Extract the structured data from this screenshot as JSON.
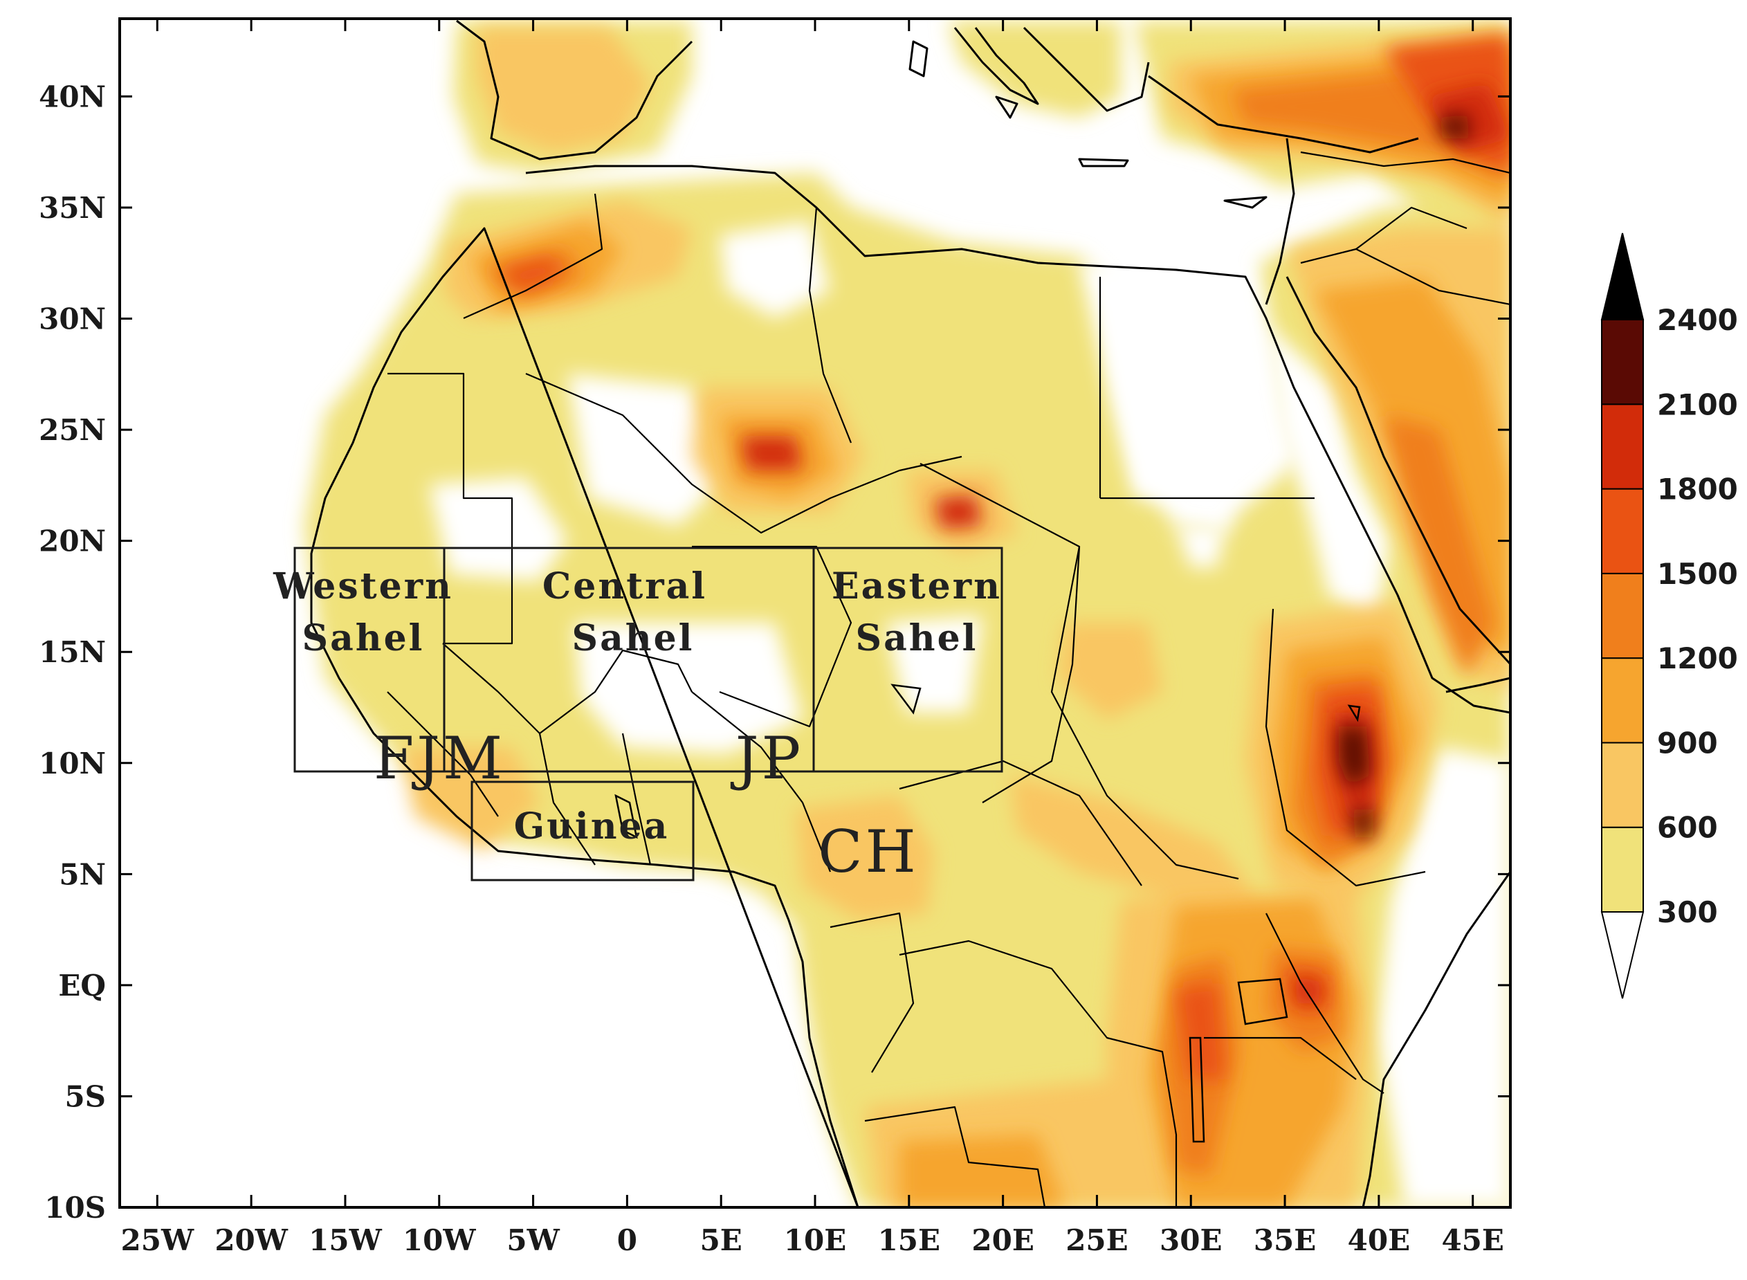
{
  "map": {
    "lon_range": [
      -27,
      47
    ],
    "lat_range": [
      -10,
      43.5
    ],
    "lon_ticks": [
      {
        "value": -25,
        "label": "25W"
      },
      {
        "value": -20,
        "label": "20W"
      },
      {
        "value": -15,
        "label": "15W"
      },
      {
        "value": -10,
        "label": "10W"
      },
      {
        "value": -5,
        "label": "5W"
      },
      {
        "value": 0,
        "label": "0"
      },
      {
        "value": 5,
        "label": "5E"
      },
      {
        "value": 10,
        "label": "10E"
      },
      {
        "value": 15,
        "label": "15E"
      },
      {
        "value": 20,
        "label": "20E"
      },
      {
        "value": 25,
        "label": "25E"
      },
      {
        "value": 30,
        "label": "30E"
      },
      {
        "value": 35,
        "label": "35E"
      },
      {
        "value": 40,
        "label": "40E"
      },
      {
        "value": 45,
        "label": "45E"
      }
    ],
    "lat_ticks": [
      {
        "value": 40,
        "label": "40N"
      },
      {
        "value": 35,
        "label": "35N"
      },
      {
        "value": 30,
        "label": "30N"
      },
      {
        "value": 25,
        "label": "25N"
      },
      {
        "value": 20,
        "label": "20N"
      },
      {
        "value": 15,
        "label": "15N"
      },
      {
        "value": 10,
        "label": "10N"
      },
      {
        "value": 5,
        "label": "5N"
      },
      {
        "value": 0,
        "label": "EQ"
      },
      {
        "value": -5,
        "label": "5S"
      },
      {
        "value": -10,
        "label": "10S"
      }
    ],
    "regions": [
      {
        "name": "western-sahel",
        "label_line1": "Western",
        "label_line2": "Sahel",
        "lon": [
          -18,
          -10
        ],
        "lat": [
          10,
          20
        ]
      },
      {
        "name": "central-sahel",
        "label_line1": "Central",
        "label_line2": "Sahel",
        "lon": [
          -10,
          10
        ],
        "lat": [
          10,
          20
        ]
      },
      {
        "name": "eastern-sahel",
        "label_line1": "Eastern",
        "label_line2": "Sahel",
        "lon": [
          10,
          20
        ],
        "lat": [
          10,
          20
        ]
      },
      {
        "name": "guinea",
        "label_line1": "Guinea",
        "label_line2": "",
        "lon": [
          -8.5,
          3.5
        ],
        "lat": [
          5,
          9.5
        ]
      }
    ],
    "site_labels": [
      {
        "name": "fjm",
        "text": "FJM",
        "lon": -6.5,
        "lat": 10
      },
      {
        "name": "jp",
        "text": "JP",
        "lon": 8.5,
        "lat": 10
      },
      {
        "name": "ch",
        "text": "CH",
        "lon": 13,
        "lat": 6
      }
    ]
  },
  "colorbar": {
    "labels": [
      "300",
      "600",
      "900",
      "1200",
      "1500",
      "1800",
      "2100",
      "2400"
    ],
    "colors": [
      "#f0e27a",
      "#f9c662",
      "#f6a52f",
      "#f07f1c",
      "#ea5313",
      "#d22c0a",
      "#5a0a04"
    ],
    "over_color": "#000000",
    "under_color": "#ffffff"
  },
  "colors": {
    "l1": "#f0e27a",
    "l2": "#f9c662",
    "l3": "#f6a52f",
    "l4": "#f07f1c",
    "l5": "#ea5313",
    "l6": "#d22c0a",
    "l7": "#5a0a04"
  }
}
